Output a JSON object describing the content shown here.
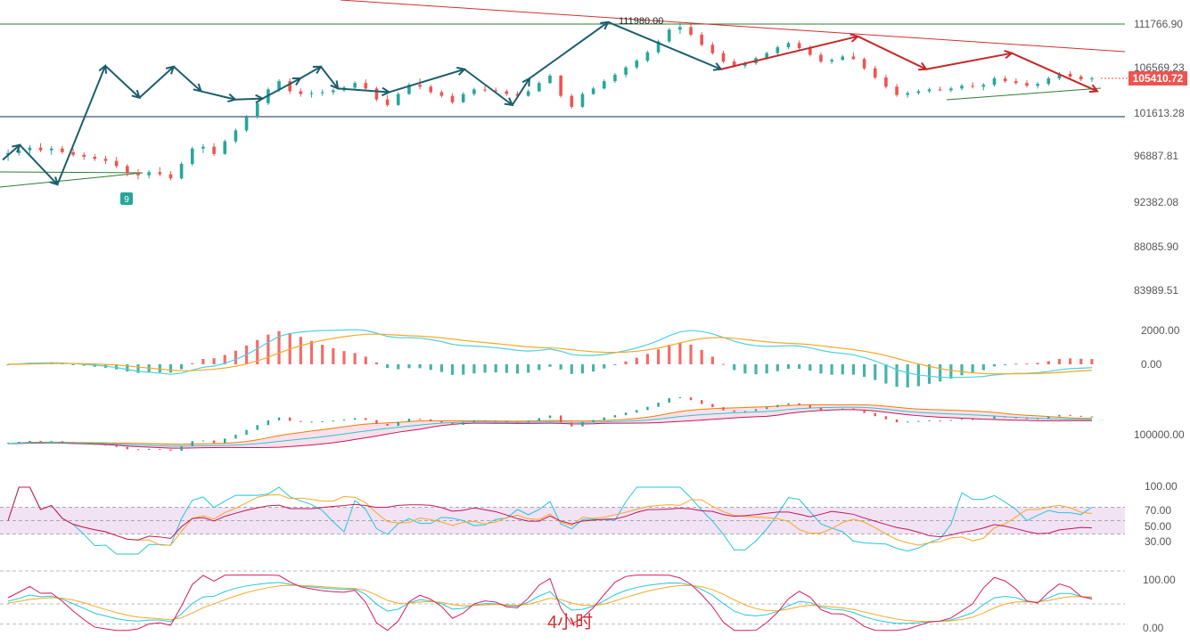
{
  "chart_data": [
    {
      "type": "candlestick",
      "pane": "price",
      "y_ticks": [
        "111766.90",
        "106569.23",
        "101613.28",
        "96887.81",
        "92382.08",
        "88085.90",
        "83989.51"
      ],
      "current_price": "105410.72",
      "peak_label": "111980.00",
      "marker_label": "9",
      "colors": {
        "up": "#26a69a",
        "down": "#ef5350",
        "wave_up": "#1b5e6e",
        "wave_down": "#c62828",
        "trend": "#d32f2f",
        "support": "#2e7d32",
        "price_tag": "#ef5350"
      },
      "candles": [
        [
          97000,
          97600,
          96400,
          97200
        ],
        [
          97200,
          97900,
          96900,
          97500
        ],
        [
          97500,
          98100,
          97100,
          97800
        ],
        [
          97800,
          98300,
          97300,
          97500
        ],
        [
          97500,
          98000,
          97000,
          97700
        ],
        [
          97700,
          98000,
          97100,
          97300
        ],
        [
          97300,
          97700,
          96800,
          97000
        ],
        [
          97000,
          97300,
          96500,
          96800
        ],
        [
          96800,
          97100,
          96400,
          96600
        ],
        [
          96600,
          96900,
          96100,
          96400
        ],
        [
          96400,
          96800,
          95700,
          95900
        ],
        [
          95900,
          96100,
          94900,
          95200
        ],
        [
          95200,
          95600,
          94600,
          95000
        ],
        [
          95000,
          95500,
          94700,
          95300
        ],
        [
          95300,
          95800,
          94900,
          95100
        ],
        [
          95100,
          95400,
          94500,
          94700
        ],
        [
          94700,
          96300,
          94600,
          96100
        ],
        [
          96100,
          97900,
          95900,
          97700
        ],
        [
          97700,
          98200,
          97200,
          97900
        ],
        [
          97900,
          98300,
          96900,
          97100
        ],
        [
          97100,
          98700,
          97000,
          98500
        ],
        [
          98500,
          99900,
          98300,
          99700
        ],
        [
          99700,
          101400,
          99500,
          101200
        ],
        [
          101200,
          102900,
          101000,
          102700
        ],
        [
          102700,
          104400,
          102500,
          104200
        ],
        [
          104200,
          105300,
          103900,
          105100
        ],
        [
          105100,
          105400,
          103700,
          104000
        ],
        [
          104000,
          104300,
          103400,
          103700
        ],
        [
          103700,
          104100,
          103300,
          103800
        ],
        [
          103800,
          104200,
          103500,
          103900
        ],
        [
          103900,
          104300,
          103600,
          104100
        ],
        [
          104100,
          104600,
          103900,
          104400
        ],
        [
          104400,
          105100,
          104200,
          104900
        ],
        [
          104900,
          105300,
          104100,
          104300
        ],
        [
          104300,
          104500,
          102900,
          103100
        ],
        [
          103100,
          103600,
          102300,
          102500
        ],
        [
          102500,
          103900,
          102400,
          103700
        ],
        [
          103700,
          104900,
          103600,
          104700
        ],
        [
          104700,
          105400,
          104200,
          104500
        ],
        [
          104500,
          104700,
          103700,
          103900
        ],
        [
          103900,
          104100,
          103300,
          103500
        ],
        [
          103500,
          103800,
          102600,
          102800
        ],
        [
          102800,
          103900,
          102700,
          103700
        ],
        [
          103700,
          104400,
          103500,
          104200
        ],
        [
          104200,
          104600,
          103900,
          104100
        ],
        [
          104100,
          104400,
          103800,
          104000
        ],
        [
          104000,
          104200,
          103500,
          103700
        ],
        [
          103700,
          104000,
          103300,
          103500
        ],
        [
          103500,
          104200,
          103400,
          104000
        ],
        [
          104000,
          105100,
          103900,
          104900
        ],
        [
          104900,
          105900,
          104800,
          105700
        ],
        [
          105700,
          105800,
          103300,
          103500
        ],
        [
          103500,
          103700,
          102100,
          102300
        ],
        [
          102300,
          103900,
          102200,
          103700
        ],
        [
          103700,
          104500,
          103600,
          104300
        ],
        [
          104300,
          105300,
          104200,
          105100
        ],
        [
          105100,
          106000,
          104900,
          105800
        ],
        [
          105800,
          106800,
          105500,
          106600
        ],
        [
          106600,
          107600,
          106400,
          107400
        ],
        [
          107400,
          108600,
          107200,
          108400
        ],
        [
          108400,
          109900,
          108200,
          109700
        ],
        [
          109700,
          111300,
          109500,
          111100
        ],
        [
          111100,
          111980,
          110600,
          111400
        ],
        [
          111400,
          111700,
          110300,
          110500
        ],
        [
          110500,
          110800,
          109100,
          109300
        ],
        [
          109300,
          109600,
          108100,
          108300
        ],
        [
          108300,
          108600,
          107100,
          107300
        ],
        [
          107300,
          107600,
          106600,
          106800
        ],
        [
          106800,
          107300,
          106500,
          107100
        ],
        [
          107100,
          107900,
          106900,
          107700
        ],
        [
          107700,
          108500,
          107500,
          108300
        ],
        [
          108300,
          109200,
          108100,
          109000
        ],
        [
          109000,
          109700,
          108800,
          109500
        ],
        [
          109500,
          109800,
          108700,
          108900
        ],
        [
          108900,
          109200,
          107900,
          108100
        ],
        [
          108100,
          108400,
          107100,
          107300
        ],
        [
          107300,
          107700,
          107000,
          107500
        ],
        [
          107500,
          108100,
          107400,
          107900
        ],
        [
          107900,
          108400,
          107500,
          107600
        ],
        [
          107600,
          107800,
          106300,
          106500
        ],
        [
          106500,
          106800,
          105300,
          105500
        ],
        [
          105500,
          105800,
          104300,
          104500
        ],
        [
          104500,
          104800,
          103400,
          103600
        ],
        [
          103600,
          104000,
          103300,
          103800
        ],
        [
          103800,
          104200,
          103600,
          104000
        ],
        [
          104000,
          104400,
          103800,
          104200
        ],
        [
          104200,
          104500,
          104000,
          104100
        ],
        [
          104100,
          104500,
          103900,
          104300
        ],
        [
          104300,
          104800,
          104100,
          104600
        ],
        [
          104600,
          105000,
          104300,
          104500
        ],
        [
          104500,
          104900,
          104100,
          104700
        ],
        [
          104700,
          105600,
          104500,
          105400
        ],
        [
          105400,
          105700,
          104900,
          105100
        ],
        [
          105100,
          105400,
          104700,
          104900
        ],
        [
          104900,
          105200,
          104400,
          104600
        ],
        [
          104600,
          105000,
          104300,
          104800
        ],
        [
          104800,
          105600,
          104600,
          105400
        ],
        [
          105400,
          106100,
          105200,
          105900
        ],
        [
          105900,
          106200,
          105400,
          105600
        ],
        [
          105600,
          105800,
          105100,
          105300
        ],
        [
          105300,
          105600,
          105000,
          105410.72
        ]
      ],
      "waves_up": [
        [
          [
            0,
            96500
          ],
          [
            5,
            98100
          ],
          [
            16,
            94100
          ],
          [
            30,
            106800
          ],
          [
            40,
            103300
          ],
          [
            50,
            106700
          ],
          [
            58,
            104000
          ],
          [
            68,
            103100
          ],
          [
            76,
            103200
          ],
          [
            87,
            105400
          ],
          [
            93,
            106700
          ],
          [
            98,
            104300
          ],
          [
            113,
            103900
          ],
          [
            135,
            106400
          ],
          [
            149,
            102500
          ],
          [
            154,
            105400
          ],
          [
            177,
            112000
          ],
          [
            210,
            106400
          ]
        ],
        [
          [
            22,
            106800
          ]
        ]
      ],
      "waves_down": [
        [
          [
            210,
            106400
          ],
          [
            250,
            110300
          ],
          [
            270,
            106400
          ],
          [
            295,
            108300
          ],
          [
            320,
            104000
          ]
        ]
      ],
      "macd": {
        "ticks": [
          "2000.00",
          "0.00"
        ]
      },
      "bands": {
        "ticks": [
          "100000.00"
        ]
      },
      "rsi": {
        "ticks": [
          "100.00",
          "70.00",
          "50.00",
          "30.00"
        ]
      },
      "kdj": {
        "ticks": [
          "100.00",
          "0.00"
        ]
      }
    }
  ],
  "timeframe_label": "4小时"
}
